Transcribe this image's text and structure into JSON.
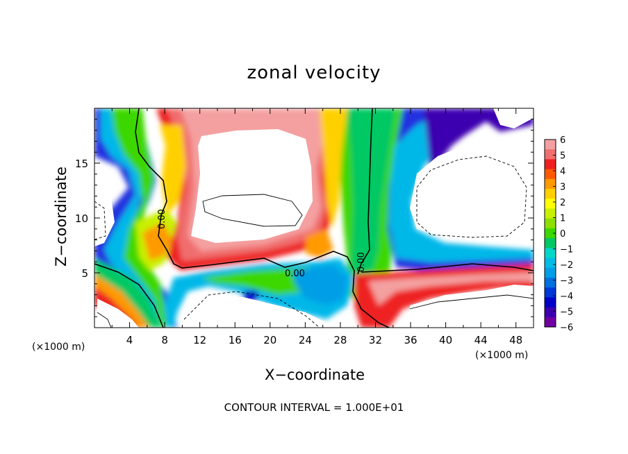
{
  "chart_data": {
    "type": "heatmap",
    "title": "zonal velocity",
    "xlabel": "X−coordinate",
    "ylabel": "Z−coordinate",
    "x_unit_label": "(×1000 m)",
    "xlim": [
      0,
      50
    ],
    "ylim": [
      0,
      20
    ],
    "x_ticks": [
      "4",
      "8",
      "12",
      "16",
      "20",
      "24",
      "28",
      "32",
      "36",
      "40",
      "44",
      "48"
    ],
    "y_ticks": [
      "5",
      "10",
      "15"
    ],
    "colorbar": {
      "ticks": [
        "6",
        "5",
        "4",
        "3",
        "2",
        "1",
        "0",
        "−1",
        "−2",
        "−3",
        "−4",
        "−5",
        "−6"
      ],
      "range": [
        -6,
        6
      ],
      "colors": [
        "#f4a0a0",
        "#f06e6e",
        "#ee2020",
        "#ff5a00",
        "#ff9a00",
        "#ffd000",
        "#ffff00",
        "#c8f000",
        "#8ce000",
        "#3cd700",
        "#00c864",
        "#00d7c8",
        "#00bce6",
        "#009ee6",
        "#0070e0",
        "#0038d7",
        "#0000c8",
        "#3c00b0",
        "#7000a0"
      ],
      "overflow": "white"
    },
    "contour_labels": [
      "0.00",
      "0.00",
      "0.00"
    ],
    "contour_interval": "CONTOUR INTERVAL = 1.000E+01",
    "grid": false
  }
}
